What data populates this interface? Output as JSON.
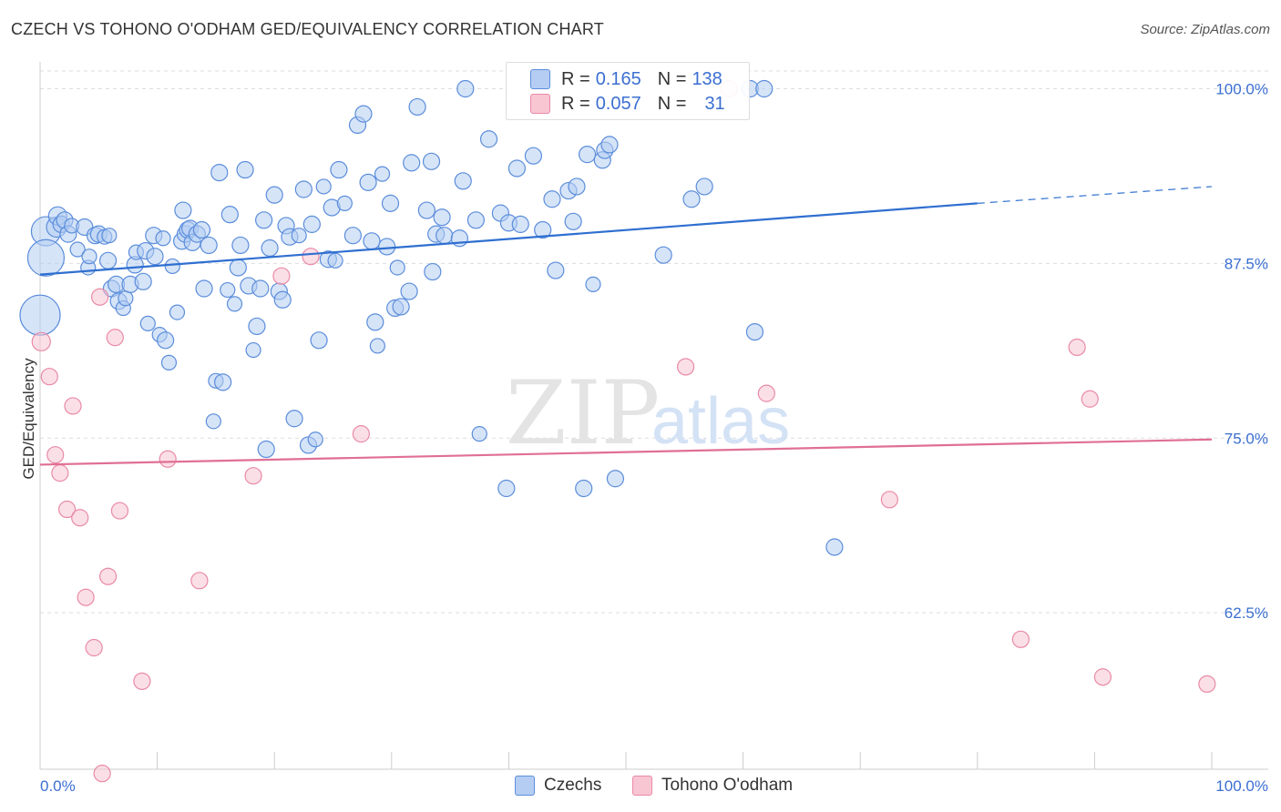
{
  "title": "CZECH VS TOHONO O'ODHAM GED/EQUIVALENCY CORRELATION CHART",
  "source": "Source: ZipAtlas.com",
  "watermark": {
    "zip": "ZIP",
    "atlas": "atlas"
  },
  "colors": {
    "czech_fill": "#b5cdf3",
    "czech_stroke": "#5b8ddb",
    "czech_line": "#2f6fd0",
    "tohono_fill": "#f8c5d3",
    "tohono_stroke": "#e98aa6",
    "tohono_line": "#e06f95",
    "tick_label": "#3b6fd1",
    "grid": "#dddddd"
  },
  "legend": {
    "rows": [
      {
        "r_label": "R =",
        "r_value": "0.165",
        "n_label": "N =",
        "n_value": "138"
      },
      {
        "r_label": "R =",
        "r_value": "0.057",
        "n_label": "N =",
        "n_value": "31"
      }
    ]
  },
  "bottom_legend": [
    "Czechs",
    "Tohono O'odham"
  ],
  "chart_data": {
    "type": "scatter",
    "title": "CZECH VS TOHONO O'ODHAM GED/EQUIVALENCY CORRELATION CHART",
    "xlabel": "",
    "ylabel": "GED/Equivalency",
    "xlim": [
      0,
      100
    ],
    "ylim": [
      50,
      101
    ],
    "x_tick_labels": [
      "0.0%",
      "100.0%"
    ],
    "y_ticks": [
      62.5,
      75.0,
      87.5,
      100.0
    ],
    "y_tick_labels": [
      "62.5%",
      "75.0%",
      "87.5%",
      "100.0%"
    ],
    "grid": true,
    "legend_position": "top-center",
    "series": [
      {
        "name": "Czechs",
        "trend": {
          "x0": 0,
          "y0": 86.7,
          "x1": 80,
          "y1": 91.8,
          "dash_to_x": 100,
          "dash_to_y": 93.0
        },
        "points": [
          [
            0,
            83.8,
            22
          ],
          [
            0.5,
            89.8,
            16
          ],
          [
            0.5,
            87.9,
            20
          ],
          [
            1.4,
            90.1,
            11
          ],
          [
            1.5,
            90.9,
            10
          ],
          [
            1.8,
            90.3,
            9
          ],
          [
            2.1,
            90.6,
            9
          ],
          [
            2.4,
            89.6,
            9
          ],
          [
            2.7,
            90.2,
            8
          ],
          [
            3.2,
            88.5,
            8
          ],
          [
            3.8,
            90.1,
            9
          ],
          [
            4.1,
            87.2,
            8
          ],
          [
            4.2,
            88.0,
            8
          ],
          [
            4.7,
            89.5,
            9
          ],
          [
            5.0,
            89.6,
            9
          ],
          [
            5.5,
            89.4,
            8
          ],
          [
            5.9,
            89.5,
            8
          ],
          [
            5.8,
            87.7,
            9
          ],
          [
            6.1,
            85.7,
            9
          ],
          [
            6.5,
            86.0,
            9
          ],
          [
            6.7,
            84.8,
            9
          ],
          [
            7.1,
            84.3,
            8
          ],
          [
            7.3,
            85.0,
            8
          ],
          [
            7.7,
            86.0,
            9
          ],
          [
            8.1,
            87.4,
            9
          ],
          [
            8.2,
            88.3,
            8
          ],
          [
            8.8,
            86.2,
            9
          ],
          [
            9.0,
            88.4,
            9
          ],
          [
            9.2,
            83.2,
            8
          ],
          [
            9.7,
            89.5,
            9
          ],
          [
            9.8,
            88.0,
            9
          ],
          [
            10.2,
            82.4,
            8
          ],
          [
            10.5,
            89.3,
            8
          ],
          [
            10.7,
            82.0,
            9
          ],
          [
            11.0,
            80.4,
            8
          ],
          [
            11.3,
            87.3,
            8
          ],
          [
            11.7,
            84.0,
            8
          ],
          [
            12.1,
            89.1,
            9
          ],
          [
            12.2,
            91.3,
            9
          ],
          [
            12.4,
            89.6,
            9
          ],
          [
            12.6,
            89.9,
            9
          ],
          [
            12.8,
            90.0,
            9
          ],
          [
            13.0,
            89.0,
            9
          ],
          [
            13.4,
            89.6,
            9
          ],
          [
            13.8,
            89.9,
            9
          ],
          [
            14.0,
            85.7,
            9
          ],
          [
            14.4,
            88.8,
            9
          ],
          [
            14.8,
            76.2,
            8
          ],
          [
            15.0,
            79.1,
            8
          ],
          [
            15.3,
            94.0,
            9
          ],
          [
            15.6,
            79.0,
            9
          ],
          [
            16.0,
            85.6,
            8
          ],
          [
            16.2,
            91.0,
            9
          ],
          [
            16.6,
            84.6,
            8
          ],
          [
            16.9,
            87.2,
            9
          ],
          [
            17.1,
            88.8,
            9
          ],
          [
            17.5,
            94.2,
            9
          ],
          [
            17.8,
            85.9,
            9
          ],
          [
            18.2,
            81.3,
            8
          ],
          [
            18.5,
            83.0,
            9
          ],
          [
            18.8,
            85.7,
            9
          ],
          [
            19.1,
            90.6,
            9
          ],
          [
            19.3,
            74.2,
            9
          ],
          [
            19.6,
            88.6,
            9
          ],
          [
            20.0,
            92.4,
            9
          ],
          [
            20.4,
            85.5,
            9
          ],
          [
            20.7,
            84.9,
            9
          ],
          [
            21.0,
            90.2,
            9
          ],
          [
            21.3,
            89.4,
            9
          ],
          [
            21.7,
            76.4,
            9
          ],
          [
            22.1,
            89.5,
            8
          ],
          [
            22.5,
            92.8,
            9
          ],
          [
            22.9,
            74.5,
            9
          ],
          [
            23.2,
            90.3,
            9
          ],
          [
            23.5,
            74.9,
            8
          ],
          [
            23.8,
            82.0,
            9
          ],
          [
            24.2,
            93.0,
            8
          ],
          [
            24.6,
            87.8,
            9
          ],
          [
            24.9,
            91.5,
            9
          ],
          [
            25.2,
            87.7,
            8
          ],
          [
            25.5,
            94.2,
            9
          ],
          [
            26.0,
            91.8,
            8
          ],
          [
            26.7,
            89.5,
            9
          ],
          [
            27.1,
            97.4,
            9
          ],
          [
            27.6,
            98.2,
            9
          ],
          [
            28.0,
            93.3,
            9
          ],
          [
            28.3,
            89.1,
            9
          ],
          [
            28.6,
            83.3,
            9
          ],
          [
            28.8,
            81.6,
            8
          ],
          [
            29.2,
            93.9,
            8
          ],
          [
            29.6,
            88.7,
            9
          ],
          [
            29.9,
            91.8,
            9
          ],
          [
            30.3,
            84.3,
            9
          ],
          [
            30.5,
            87.2,
            8
          ],
          [
            30.8,
            84.4,
            9
          ],
          [
            31.5,
            85.5,
            9
          ],
          [
            31.7,
            94.7,
            9
          ],
          [
            32.2,
            98.7,
            9
          ],
          [
            33.0,
            91.3,
            9
          ],
          [
            33.4,
            94.8,
            9
          ],
          [
            33.5,
            86.9,
            9
          ],
          [
            33.8,
            89.6,
            9
          ],
          [
            34.3,
            90.8,
            9
          ],
          [
            34.5,
            89.5,
            9
          ],
          [
            35.8,
            89.3,
            9
          ],
          [
            36.1,
            93.4,
            9
          ],
          [
            36.3,
            100.0,
            9
          ],
          [
            37.2,
            90.6,
            9
          ],
          [
            37.5,
            75.3,
            8
          ],
          [
            38.3,
            96.4,
            9
          ],
          [
            39.3,
            91.1,
            9
          ],
          [
            39.8,
            71.4,
            9
          ],
          [
            40.0,
            90.4,
            9
          ],
          [
            40.7,
            94.3,
            9
          ],
          [
            41.0,
            90.3,
            9
          ],
          [
            42.1,
            95.2,
            9
          ],
          [
            42.9,
            89.9,
            9
          ],
          [
            43.7,
            92.1,
            9
          ],
          [
            44.0,
            87.0,
            9
          ],
          [
            45.1,
            92.7,
            9
          ],
          [
            45.5,
            90.5,
            9
          ],
          [
            45.8,
            93.0,
            9
          ],
          [
            46.4,
            71.4,
            9
          ],
          [
            46.7,
            95.3,
            9
          ],
          [
            47.2,
            86.0,
            8
          ],
          [
            48.0,
            94.9,
            9
          ],
          [
            48.2,
            95.6,
            9
          ],
          [
            48.6,
            96.0,
            9
          ],
          [
            49.1,
            72.1,
            9
          ],
          [
            53.2,
            88.1,
            9
          ],
          [
            55.6,
            92.1,
            9
          ],
          [
            56.7,
            93.0,
            9
          ],
          [
            60.6,
            100.0,
            9
          ],
          [
            61.8,
            100.0,
            9
          ],
          [
            61.0,
            82.6,
            9
          ],
          [
            67.8,
            67.2,
            9
          ]
        ]
      },
      {
        "name": "Tohono O'odham",
        "trend": {
          "x0": 0,
          "y0": 73.1,
          "x1": 100,
          "y1": 74.9
        },
        "points": [
          [
            0.1,
            81.9,
            10
          ],
          [
            0.8,
            79.4,
            9
          ],
          [
            1.3,
            73.8,
            9
          ],
          [
            1.7,
            72.5,
            9
          ],
          [
            2.3,
            69.9,
            9
          ],
          [
            2.8,
            77.3,
            9
          ],
          [
            3.4,
            69.3,
            9
          ],
          [
            3.9,
            63.6,
            9
          ],
          [
            4.6,
            60.0,
            9
          ],
          [
            5.1,
            85.1,
            9
          ],
          [
            5.3,
            51.0,
            9
          ],
          [
            5.8,
            65.1,
            9
          ],
          [
            6.4,
            82.2,
            9
          ],
          [
            6.8,
            69.8,
            9
          ],
          [
            8.7,
            57.6,
            9
          ],
          [
            10.9,
            73.5,
            9
          ],
          [
            13.6,
            64.8,
            9
          ],
          [
            18.2,
            72.3,
            9
          ],
          [
            20.6,
            86.6,
            9
          ],
          [
            23.1,
            88.0,
            9
          ],
          [
            27.4,
            75.3,
            9
          ],
          [
            55.1,
            80.1,
            9
          ],
          [
            58.8,
            100.0,
            9
          ],
          [
            62.0,
            78.2,
            9
          ],
          [
            72.5,
            70.6,
            9
          ],
          [
            83.7,
            60.6,
            9
          ],
          [
            88.5,
            81.5,
            9
          ],
          [
            89.6,
            77.8,
            9
          ],
          [
            90.7,
            57.9,
            9
          ],
          [
            99.6,
            57.4,
            9
          ]
        ]
      }
    ]
  }
}
